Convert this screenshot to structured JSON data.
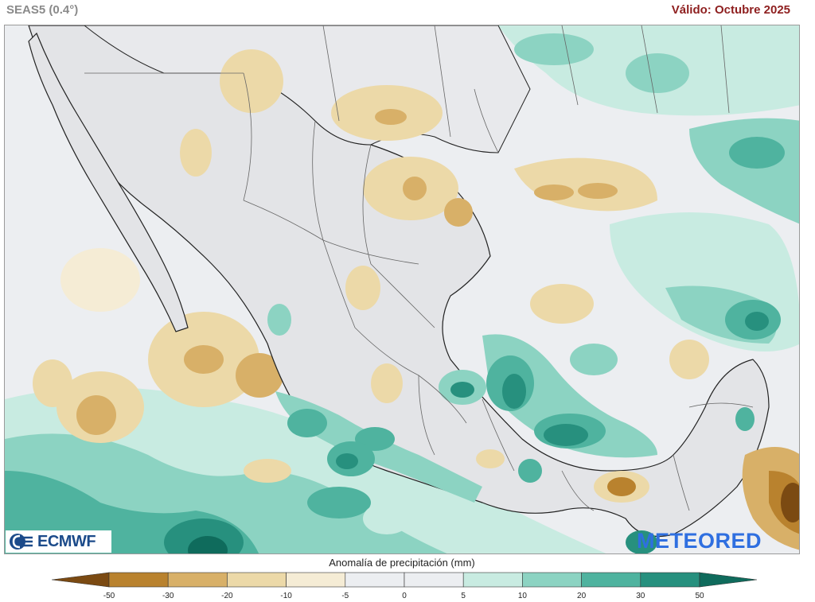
{
  "header": {
    "model": "SEAS5 (0.4°)",
    "valid": "Válido: Octubre 2025"
  },
  "logos": {
    "ecmwf": "ECMWF",
    "meteored": "METEORED"
  },
  "legend": {
    "title": "Anomalía de precipitación (mm)",
    "ticks": [
      "-50",
      "-30",
      "-20",
      "-10",
      "-5",
      "0",
      "5",
      "10",
      "20",
      "30",
      "50"
    ],
    "colors": [
      "#7b4a12",
      "#b9822e",
      "#d8b068",
      "#ecd9a8",
      "#f5ecd5",
      "#eceef1",
      "#eceef1",
      "#c8ebe1",
      "#8cd3c2",
      "#4fb39f",
      "#27907e",
      "#0f6b5c"
    ]
  }
}
